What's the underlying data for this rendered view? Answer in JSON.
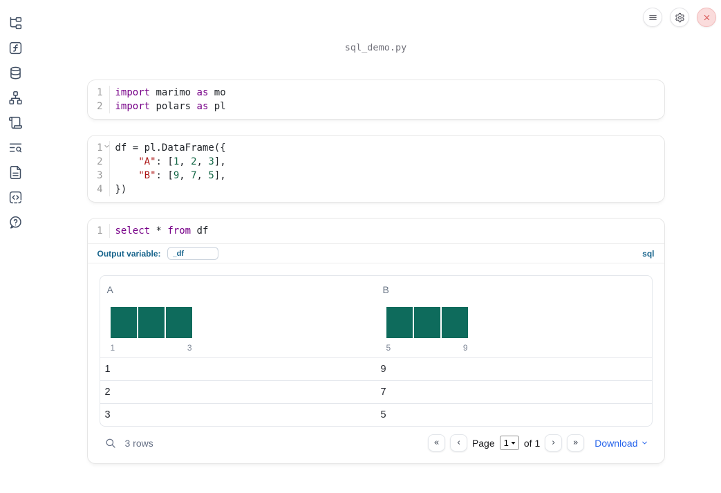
{
  "window": {
    "title": "sql_demo.py"
  },
  "topbar": {
    "buttons": [
      {
        "id": "menu",
        "icon": "menu-icon"
      },
      {
        "id": "settings",
        "icon": "gear-icon"
      },
      {
        "id": "shutdown",
        "icon": "close-icon"
      }
    ]
  },
  "sidebar": {
    "items": [
      {
        "id": "file-explorer",
        "icon": "file-tree-icon"
      },
      {
        "id": "variables",
        "icon": "function-square-icon"
      },
      {
        "id": "data-sources",
        "icon": "database-icon"
      },
      {
        "id": "dependencies",
        "icon": "dependency-graph-icon"
      },
      {
        "id": "scratchpad",
        "icon": "scroll-icon"
      },
      {
        "id": "logs",
        "icon": "text-search-icon"
      },
      {
        "id": "documentation",
        "icon": "file-text-icon"
      },
      {
        "id": "snippets",
        "icon": "code-square-icon"
      },
      {
        "id": "help",
        "icon": "help-circle-icon"
      }
    ]
  },
  "cells": [
    {
      "type": "python",
      "lines": [
        {
          "n": "1",
          "segs": [
            [
              "kw",
              "import"
            ],
            [
              "pl",
              " marimo "
            ],
            [
              "kw",
              "as"
            ],
            [
              "pl",
              " mo"
            ]
          ]
        },
        {
          "n": "2",
          "segs": [
            [
              "kw",
              "import"
            ],
            [
              "pl",
              " polars "
            ],
            [
              "kw",
              "as"
            ],
            [
              "pl",
              " pl"
            ]
          ]
        }
      ]
    },
    {
      "type": "python",
      "lines": [
        {
          "n": "1",
          "fold": true,
          "segs": [
            [
              "pl",
              "df = pl.DataFrame({"
            ]
          ]
        },
        {
          "n": "2",
          "segs": [
            [
              "pl",
              "    "
            ],
            [
              "str",
              "\"A\""
            ],
            [
              "pl",
              ": ["
            ],
            [
              "num",
              "1"
            ],
            [
              "pl",
              ", "
            ],
            [
              "num",
              "2"
            ],
            [
              "pl",
              ", "
            ],
            [
              "num",
              "3"
            ],
            [
              "pl",
              "],"
            ]
          ]
        },
        {
          "n": "3",
          "segs": [
            [
              "pl",
              "    "
            ],
            [
              "str",
              "\"B\""
            ],
            [
              "pl",
              ": ["
            ],
            [
              "num",
              "9"
            ],
            [
              "pl",
              ", "
            ],
            [
              "num",
              "7"
            ],
            [
              "pl",
              ", "
            ],
            [
              "num",
              "5"
            ],
            [
              "pl",
              "],"
            ]
          ]
        },
        {
          "n": "4",
          "segs": [
            [
              "pl",
              "})"
            ]
          ]
        }
      ]
    },
    {
      "type": "sql",
      "lines": [
        {
          "n": "1",
          "segs": [
            [
              "kw",
              "select"
            ],
            [
              "pl",
              " * "
            ],
            [
              "kw",
              "from"
            ],
            [
              "pl",
              " df"
            ]
          ]
        }
      ],
      "output_variable_label": "Output variable:",
      "output_variable_value": "_df",
      "language_badge": "sql"
    }
  ],
  "table": {
    "columns": [
      {
        "name": "A",
        "bars": [
          1,
          1,
          1
        ],
        "hist_labels": [
          "1",
          "3"
        ]
      },
      {
        "name": "B",
        "bars": [
          1,
          1,
          1
        ],
        "hist_labels": [
          "5",
          "9"
        ]
      }
    ],
    "rows": [
      [
        "1",
        "9"
      ],
      [
        "2",
        "7"
      ],
      [
        "3",
        "5"
      ]
    ],
    "footer": {
      "row_count": "3 rows",
      "page_label": "Page",
      "page_value": "1",
      "of_label": "of 1",
      "download_label": "Download",
      "pager": {
        "first": "«",
        "prev": "‹",
        "next": "›",
        "last": "»"
      }
    }
  },
  "colors": {
    "histogram_bar": "#0e6b5c",
    "sql_accent": "#17648c",
    "download_link": "#2563eb",
    "keyword": "#770088",
    "string": "#aa1111",
    "number": "#116644",
    "close_button_bg": "#fadcdc",
    "close_button_icon": "#d95454"
  },
  "chart_data": [
    {
      "type": "bar",
      "title": "A",
      "categories": [
        "1",
        "2",
        "3"
      ],
      "values": [
        1,
        1,
        1
      ],
      "xlabel": "",
      "ylabel": "",
      "tick_labels_shown": [
        "1",
        "3"
      ],
      "grid": false,
      "legend": "none"
    },
    {
      "type": "bar",
      "title": "B",
      "categories": [
        "5",
        "7",
        "9"
      ],
      "values": [
        1,
        1,
        1
      ],
      "xlabel": "",
      "ylabel": "",
      "tick_labels_shown": [
        "5",
        "9"
      ],
      "grid": false,
      "legend": "none"
    }
  ]
}
